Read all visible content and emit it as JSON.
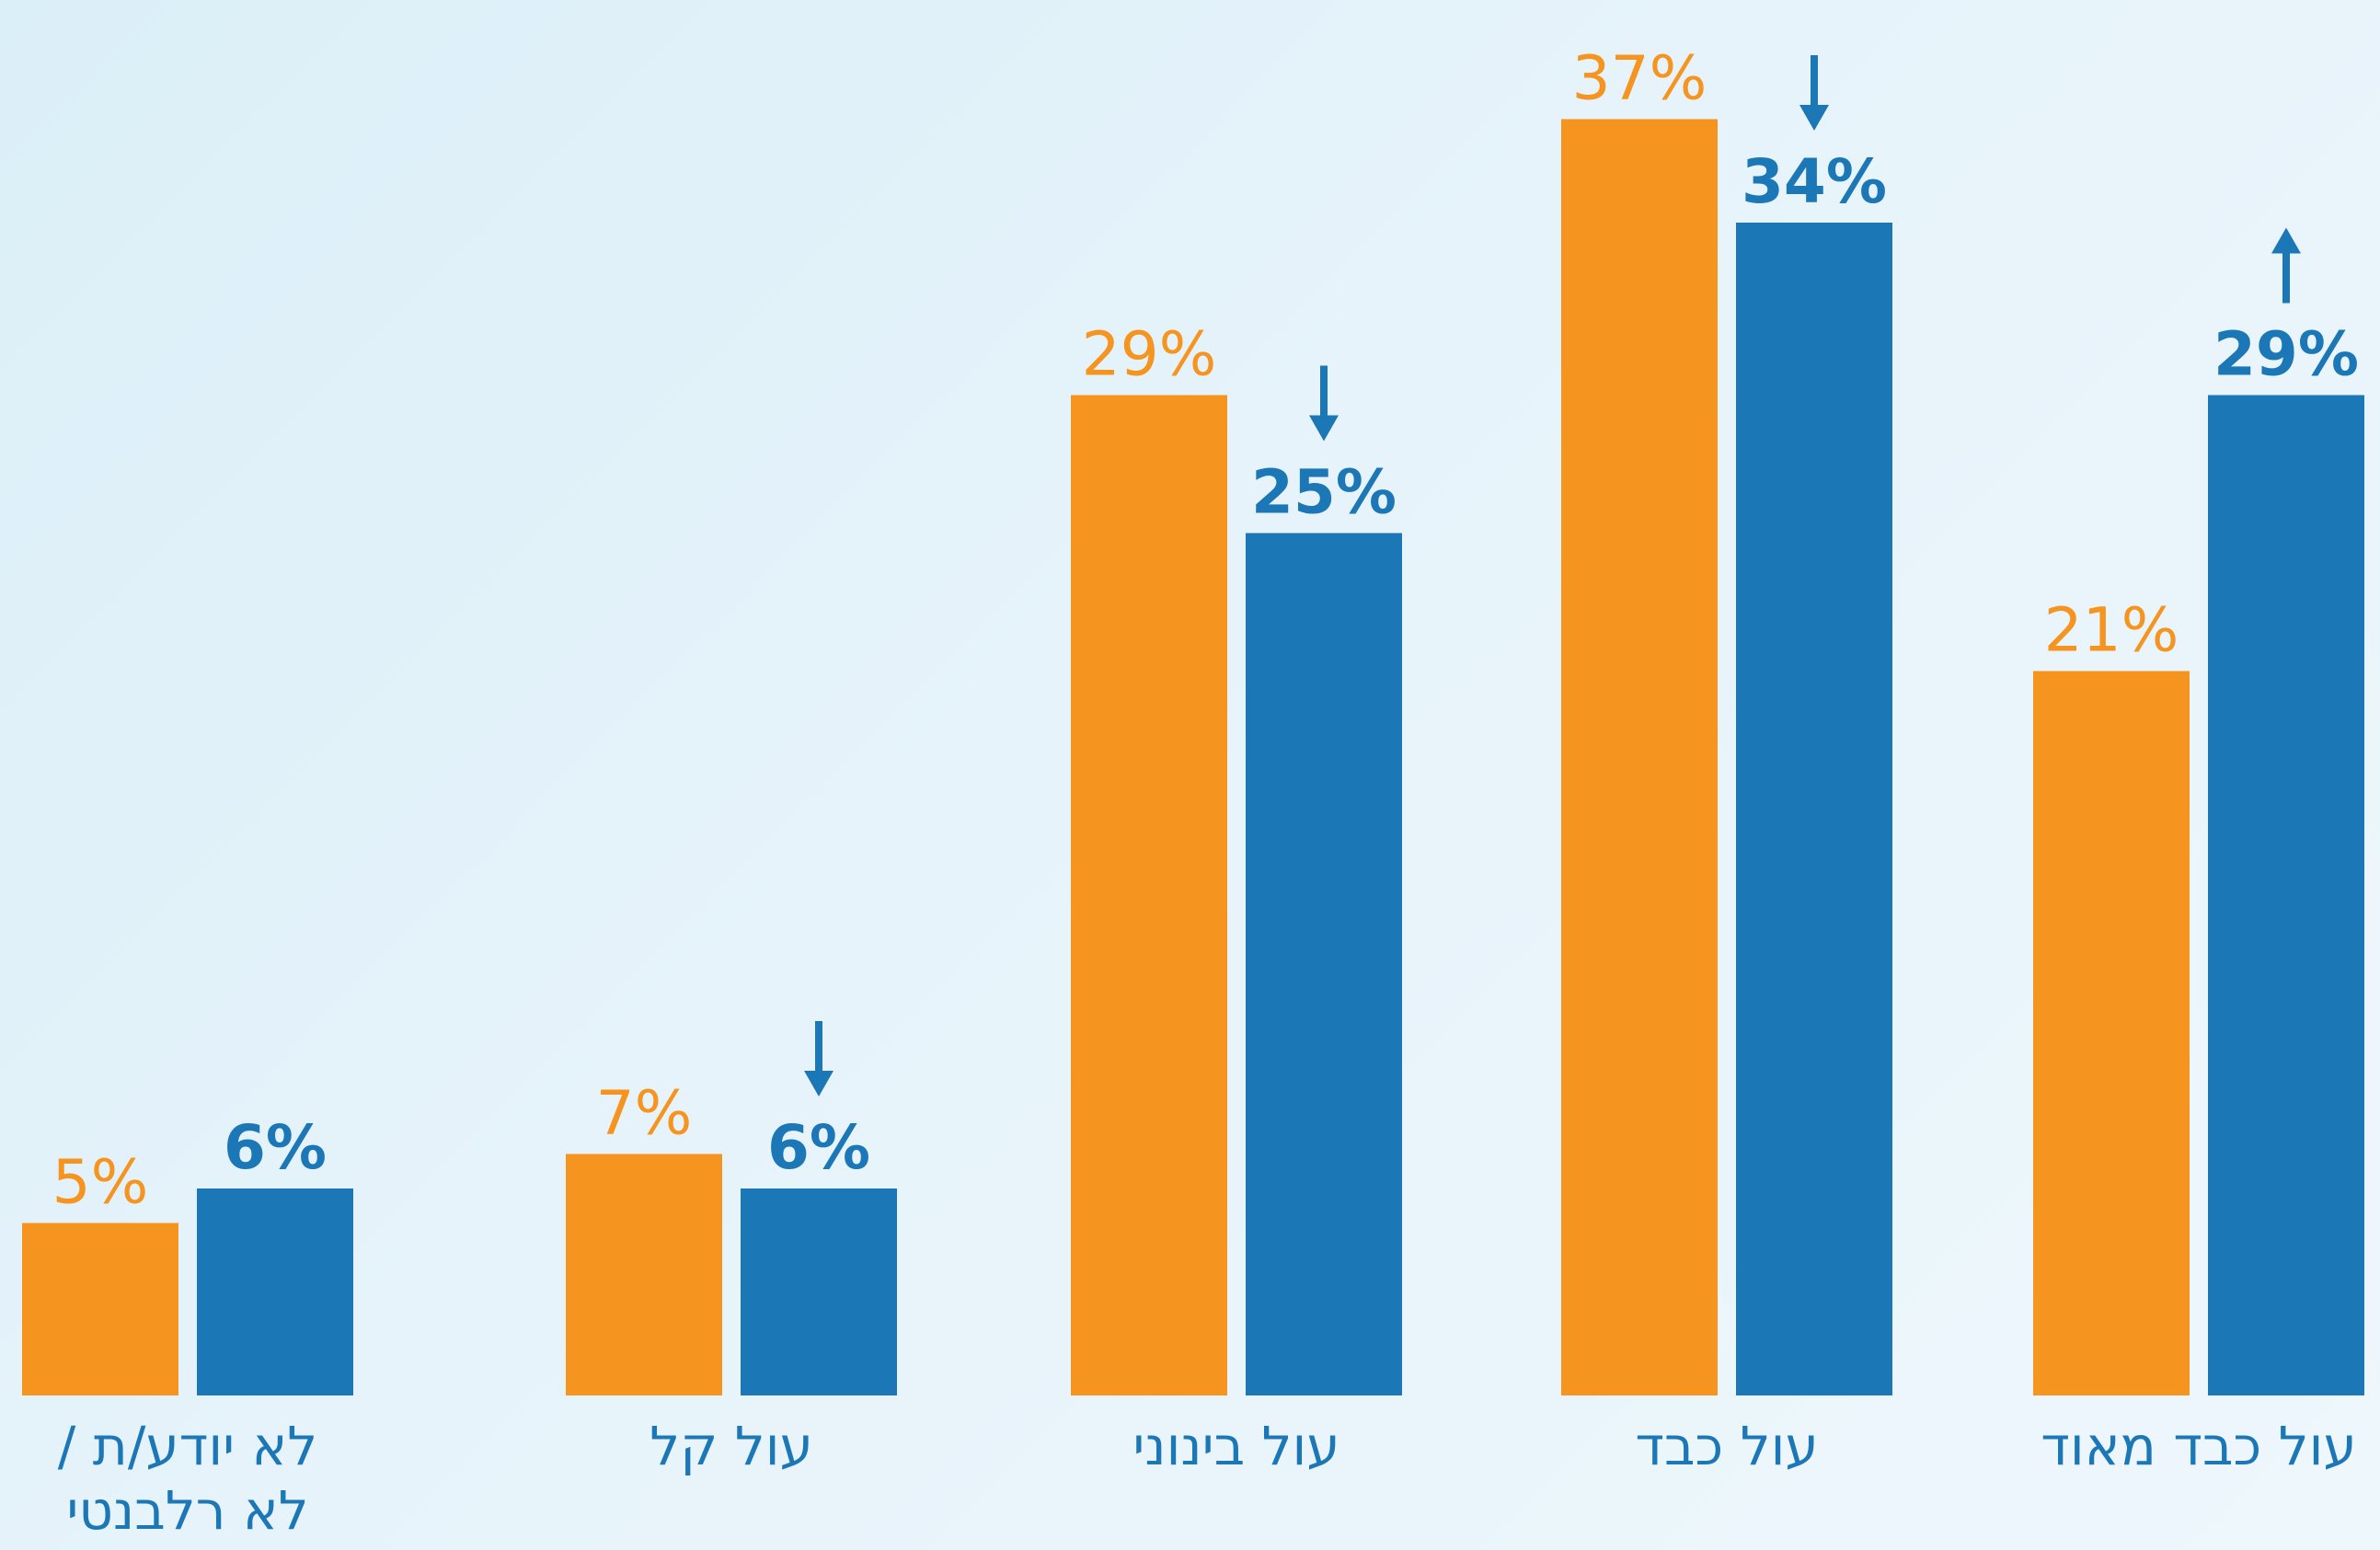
{
  "chart_data": {
    "type": "bar",
    "categories": [
      "עול כבד מאוד",
      "עול כבד",
      "עול בינוני",
      "עול קל",
      "לא יודע/ת / לא רלבנטי"
    ],
    "category_lines": [
      [
        "עול כבד מאוד"
      ],
      [
        "עול כבד"
      ],
      [
        "עול בינוני"
      ],
      [
        "עול קל"
      ],
      [
        "לא יודע/ת /",
        "לא רלבנטי"
      ]
    ],
    "series": [
      {
        "color": "#f5951f",
        "values": [
          21,
          37,
          29,
          7,
          5
        ],
        "labels": [
          "21%",
          "37%",
          "29%",
          "7%",
          "5%"
        ]
      },
      {
        "color": "#1c77b7",
        "values": [
          29,
          34,
          25,
          6,
          6
        ],
        "labels": [
          "29%",
          "34%",
          "25%",
          "6%",
          "6%"
        ]
      }
    ],
    "trend_arrows": [
      "up-arrow",
      "down-arrow",
      "down-arrow",
      "down-arrow",
      null
    ],
    "ylim": [
      0,
      40
    ],
    "grid": false,
    "legend": "none",
    "direction": "rtl",
    "colors": {
      "orange": "#f5951f",
      "blue": "#1c77b7",
      "category_text": "#1c77b7"
    }
  }
}
